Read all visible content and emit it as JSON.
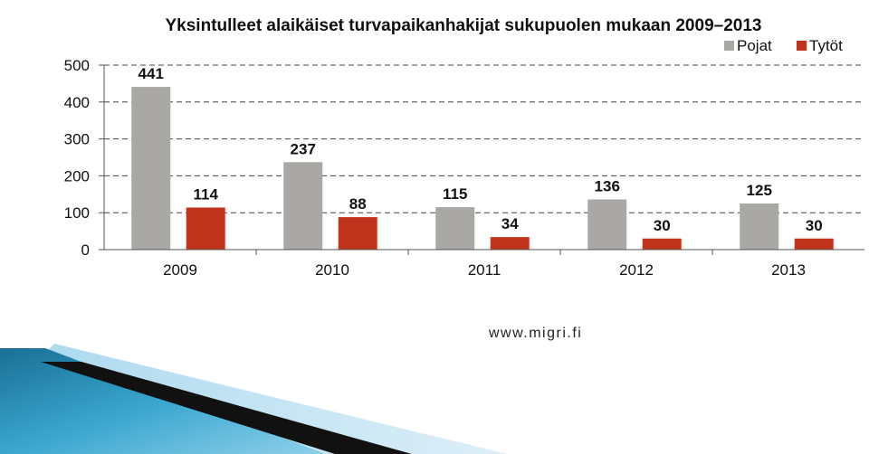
{
  "chart_data": {
    "type": "bar",
    "title": "Yksintulleet alaikäiset turvapaikanhakijat sukupuolen mukaan 2009–2013",
    "categories": [
      "2009",
      "2010",
      "2011",
      "2012",
      "2013"
    ],
    "series": [
      {
        "name": "Pojat",
        "values": [
          441,
          237,
          115,
          136,
          125
        ],
        "color": "#aaa8a4"
      },
      {
        "name": "Tytöt",
        "values": [
          114,
          88,
          34,
          30,
          30
        ],
        "color": "#c0331d"
      }
    ],
    "ylim": [
      0,
      500
    ],
    "yticks": [
      0,
      100,
      200,
      300,
      400,
      500
    ],
    "xlabel": "",
    "ylabel": "",
    "grid": "horizontal dashed",
    "legend_position": "top-right"
  },
  "footer": {
    "source": "www.migri.fi"
  },
  "colors": {
    "decor_teal": "#1f7fa6",
    "decor_light": "#a9d8ee",
    "decor_dark": "#111111"
  }
}
